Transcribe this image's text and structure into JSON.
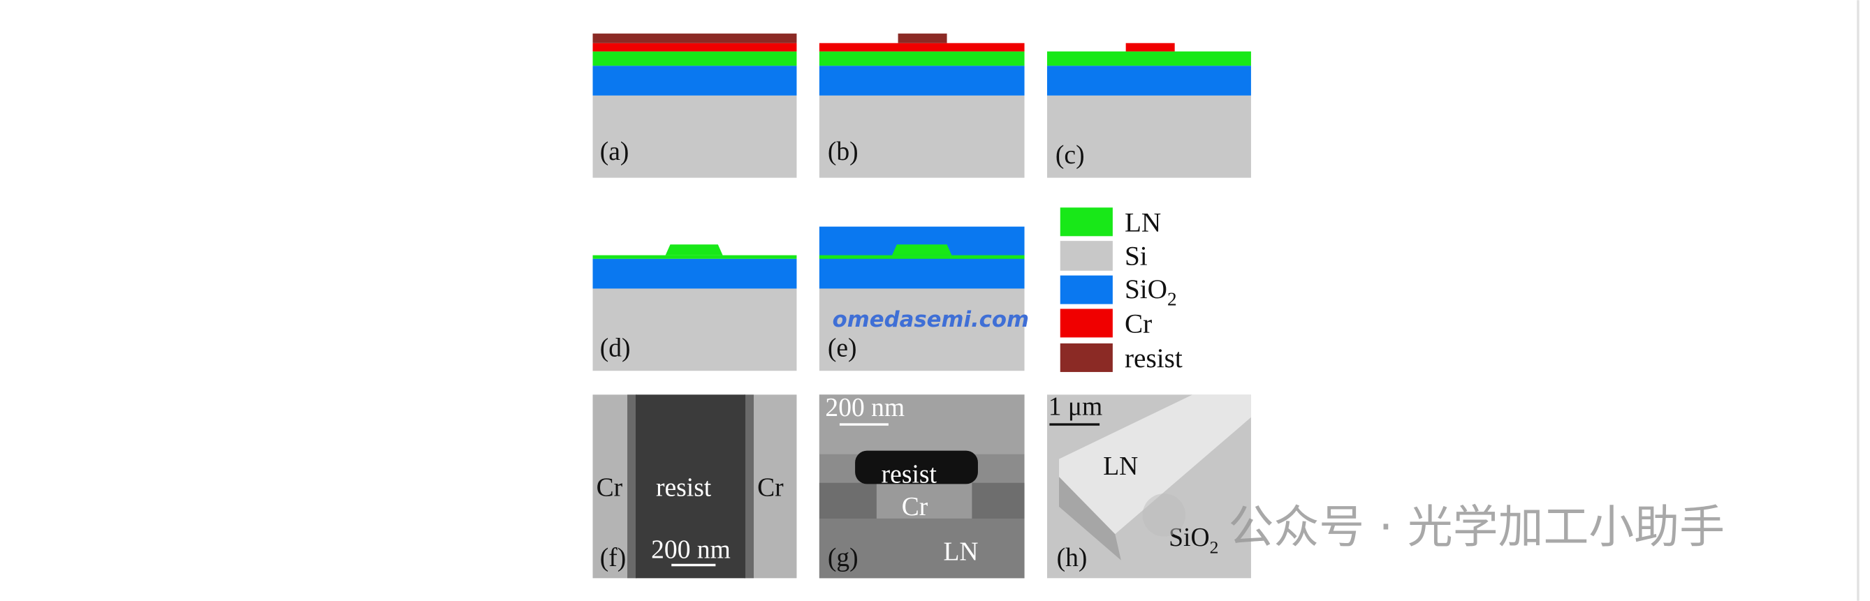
{
  "panels": [
    {
      "label": "(a)"
    },
    {
      "label": "(b)"
    },
    {
      "label": "(c)"
    },
    {
      "label": "(d)"
    },
    {
      "label": "(e)"
    },
    {
      "label": "(f)"
    },
    {
      "label": "(g)"
    },
    {
      "label": "(h)"
    }
  ],
  "legend": [
    {
      "text": "LN"
    },
    {
      "text": "Si"
    },
    {
      "text": "SiO",
      "sub": "2"
    },
    {
      "text": "Cr"
    },
    {
      "text": "resist"
    }
  ],
  "sem_f": {
    "left": "Cr",
    "center": "resist",
    "right": "Cr",
    "scale": "200 nm"
  },
  "sem_g": {
    "scale": "200 nm",
    "top": "resist",
    "middle": "Cr",
    "bottom": "LN"
  },
  "sem_h": {
    "scale": "1 μm",
    "top": "LN",
    "bottom": {
      "text": "SiO",
      "sub": "2"
    }
  },
  "watermarks": {
    "site": "omedasemi.com",
    "account": "公众号 · 光学加工小助手"
  }
}
